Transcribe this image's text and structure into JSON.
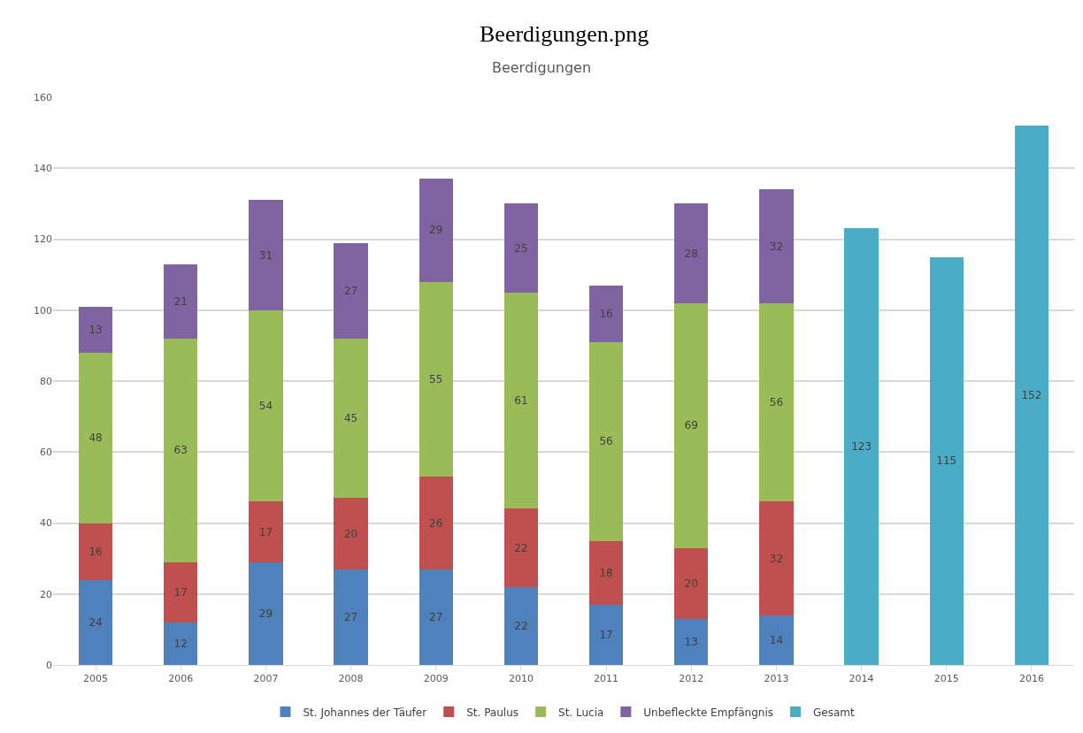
{
  "chart_data": {
    "type": "bar",
    "title": "Beerdigungen",
    "annotations": [
      "Beerdigungen.png"
    ],
    "categories": [
      "2005",
      "2006",
      "2007",
      "2008",
      "2009",
      "2010",
      "2011",
      "2012",
      "2013",
      "2014",
      "2015",
      "2016"
    ],
    "stacked": true,
    "data_labels": true,
    "grid": "y",
    "legend": "bottom",
    "ylim": [
      0,
      160
    ],
    "yticks": [
      0,
      20,
      40,
      60,
      80,
      100,
      120,
      140,
      160
    ],
    "series": [
      {
        "name": "St. Johannes der Täufer",
        "color": "#4f81bd",
        "values": [
          24,
          12,
          29,
          27,
          27,
          22,
          17,
          13,
          14,
          null,
          null,
          null
        ]
      },
      {
        "name": "St. Paulus",
        "color": "#c0504d",
        "values": [
          16,
          17,
          17,
          20,
          26,
          22,
          18,
          20,
          32,
          null,
          null,
          null
        ]
      },
      {
        "name": "St. Lucia",
        "color": "#9bbb59",
        "values": [
          48,
          63,
          54,
          45,
          55,
          61,
          56,
          69,
          56,
          null,
          null,
          null
        ]
      },
      {
        "name": "Unbefleckte Empfängnis",
        "color": "#8064a2",
        "values": [
          13,
          21,
          31,
          27,
          29,
          25,
          16,
          28,
          32,
          null,
          null,
          null
        ]
      },
      {
        "name": "Gesamt",
        "color": "#4bacc6",
        "values": [
          null,
          null,
          null,
          null,
          null,
          null,
          null,
          null,
          null,
          123,
          115,
          152
        ]
      }
    ]
  }
}
